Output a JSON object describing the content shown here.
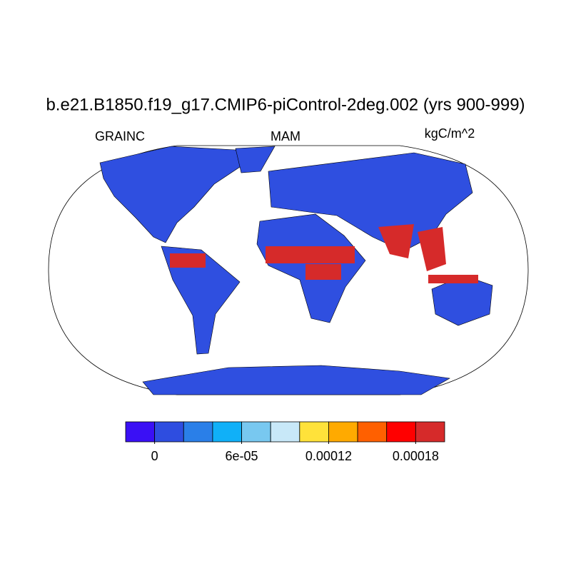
{
  "title": "b.e21.B1850.f19_g17.CMIP6-piControl-2deg.002 (yrs 900-999)",
  "left_string": "GRAINC",
  "center_string": "MAM",
  "right_string": "kgC/m^2",
  "colorbar": {
    "lim": [
      -2e-05,
      0.0002
    ],
    "ticks": [
      0,
      {
        "value": 6e-05,
        "label": "6e-05"
      },
      0.00012,
      0.00018
    ],
    "colors": [
      "#3a10f5",
      "#2e4de0",
      "#2a7fe8",
      "#10b0f8",
      "#78c8f0",
      "#c8e8f8",
      "#ffe23a",
      "#ffaa00",
      "#ff6000",
      "#ff0000",
      "#d62a2a"
    ]
  }
}
